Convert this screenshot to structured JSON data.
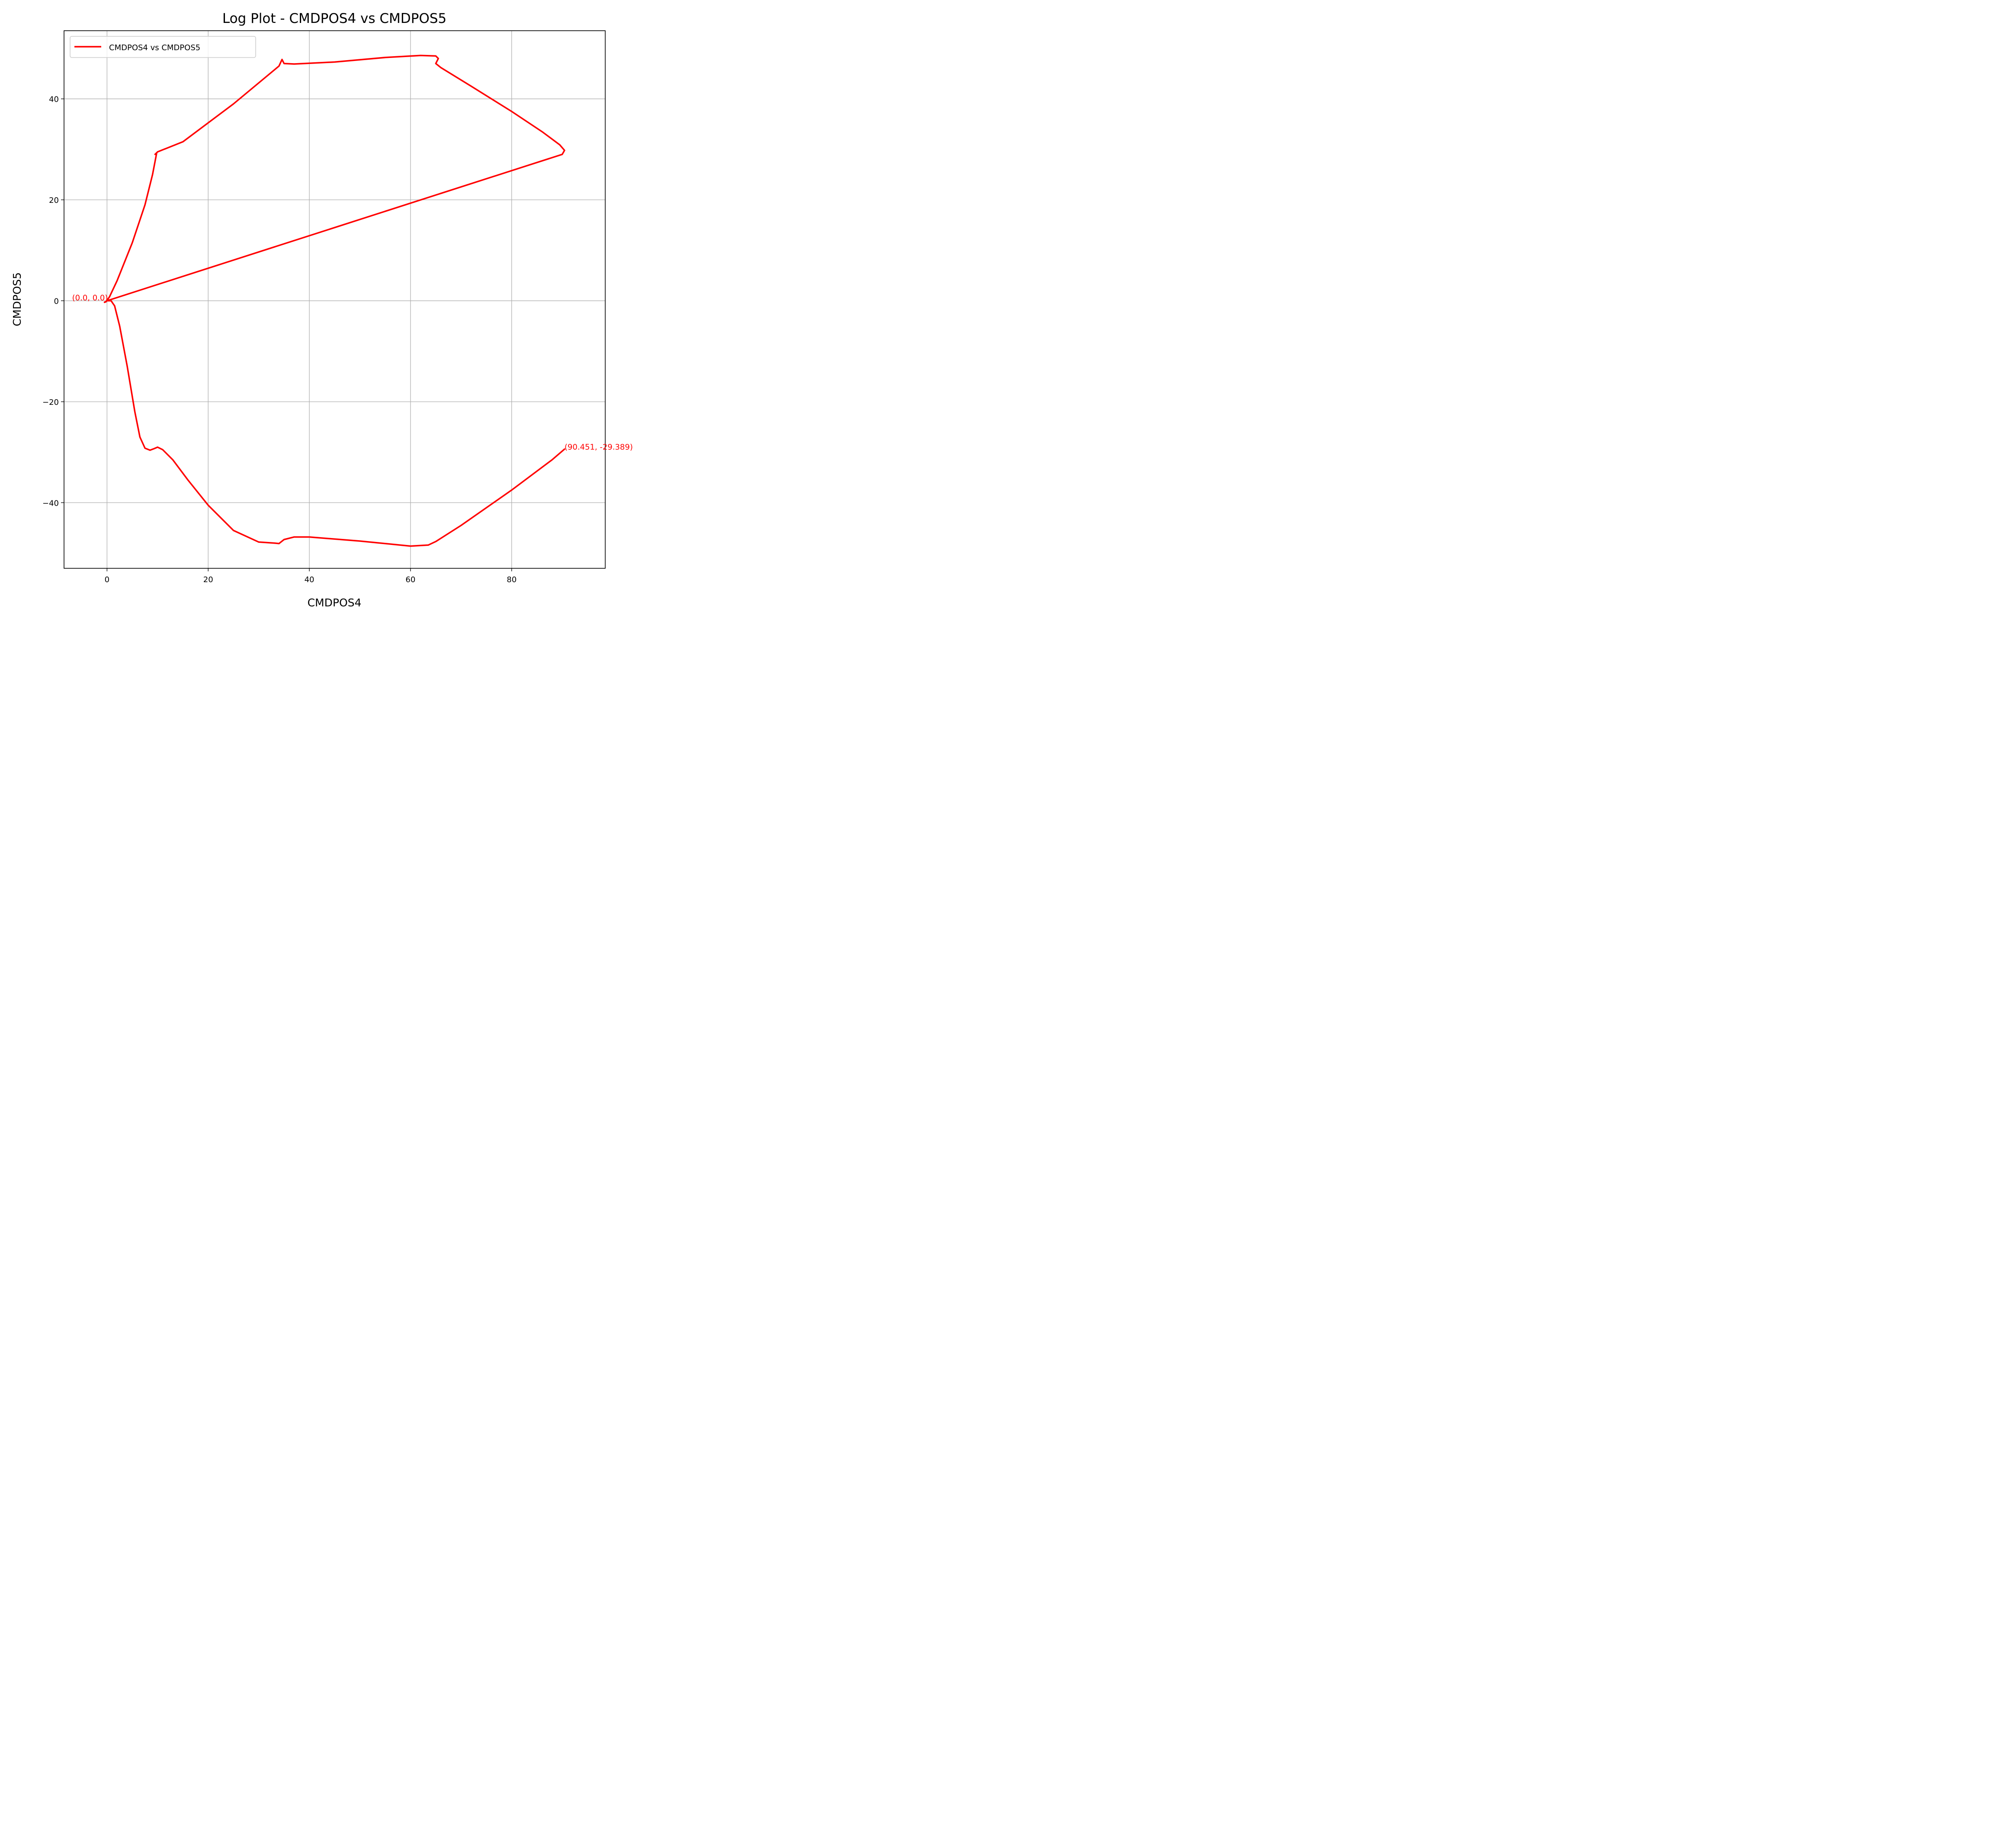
{
  "chart_data": {
    "type": "line",
    "title": "Log Plot - CMDPOS4 vs CMDPOS5",
    "xlabel": "CMDPOS4",
    "ylabel": "CMDPOS5",
    "xlim": [
      -8.5,
      98.5
    ],
    "ylim": [
      -53,
      53.5
    ],
    "xticks": [
      0,
      20,
      40,
      60,
      80
    ],
    "yticks": [
      -40,
      -20,
      0,
      20,
      40
    ],
    "xtick_labels": [
      "0",
      "20",
      "40",
      "60",
      "80"
    ],
    "ytick_labels": [
      "−40",
      "−20",
      "0",
      "20",
      "40"
    ],
    "grid": true,
    "legend_position": "top-left",
    "series": [
      {
        "name": "CMDPOS4 vs CMDPOS5",
        "color": "#ff0000",
        "x": [
          0,
          90.0,
          90.45,
          89.5,
          86.0,
          80.0,
          72.0,
          66.0,
          65.0,
          65.5,
          65.0,
          62.0,
          55.0,
          45.0,
          37.0,
          35.0,
          34.6,
          34.0,
          25.0,
          15.0,
          10.0,
          9.5,
          9.8,
          9.0,
          7.5,
          5.0,
          2.0,
          0.5,
          -0.2,
          -0.5,
          0.0,
          0.8,
          1.5,
          2.5,
          4.0,
          5.5,
          6.5,
          7.5,
          8.5,
          9.3,
          10.0,
          11.0,
          13.0,
          16.0,
          20.0,
          25.0,
          30.0,
          33.0,
          34.0,
          35.0,
          37.0,
          40.0,
          50.0,
          60.0,
          63.5,
          65.0,
          70.0,
          80.0,
          88.0,
          90.451
        ],
        "y": [
          0,
          29.0,
          29.8,
          30.9,
          33.5,
          37.5,
          42.5,
          46.2,
          47.0,
          48.0,
          48.5,
          48.6,
          48.2,
          47.3,
          46.9,
          47.0,
          47.8,
          46.5,
          39.0,
          31.5,
          29.5,
          29.0,
          29.2,
          25.0,
          19.0,
          11.5,
          4.0,
          0.8,
          -0.2,
          -0.3,
          0.0,
          0.0,
          -1.0,
          -5.0,
          -13.0,
          -22.0,
          -27.0,
          -29.2,
          -29.6,
          -29.3,
          -29.0,
          -29.5,
          -31.5,
          -35.5,
          -40.5,
          -45.5,
          -47.8,
          -48.0,
          -48.1,
          -47.3,
          -46.8,
          -46.8,
          -47.6,
          -48.6,
          -48.4,
          -47.7,
          -44.5,
          -37.5,
          -31.5,
          -29.389
        ]
      }
    ],
    "annotations": [
      {
        "text": "(0.0, 0.0)",
        "x": 0.0,
        "y": 0.0,
        "anchor": "end",
        "color": "#ff0000"
      },
      {
        "text": "(90.451, -29.389)",
        "x": 90.451,
        "y": -29.389,
        "anchor": "start",
        "color": "#ff0000"
      }
    ]
  }
}
